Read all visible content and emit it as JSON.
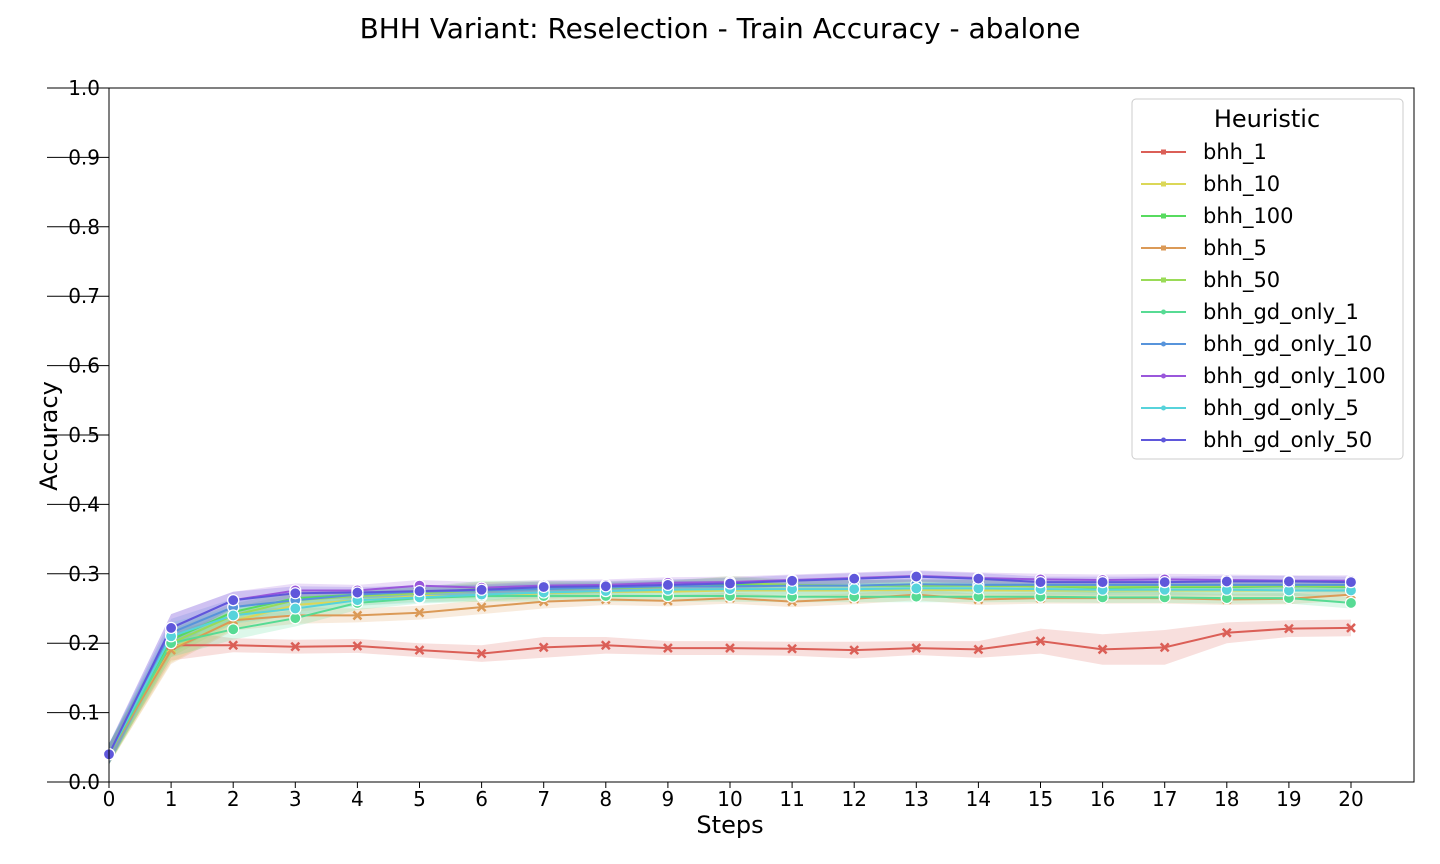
{
  "chart_data": {
    "type": "line",
    "title": "BHH Variant: Reselection - Train Accuracy - abalone",
    "xlabel": "Steps",
    "ylabel": "Accuracy",
    "xlim": [
      0,
      20
    ],
    "ylim": [
      0.0,
      1.0
    ],
    "x": [
      0,
      1,
      2,
      3,
      4,
      5,
      6,
      7,
      8,
      9,
      10,
      11,
      12,
      13,
      14,
      15,
      16,
      17,
      18,
      19,
      20
    ],
    "x_ticks": [
      "0",
      "1",
      "2",
      "3",
      "4",
      "5",
      "6",
      "7",
      "8",
      "9",
      "10",
      "11",
      "12",
      "13",
      "14",
      "15",
      "16",
      "17",
      "18",
      "19",
      "20"
    ],
    "y_ticks": [
      "0.0",
      "0.1",
      "0.2",
      "0.3",
      "0.4",
      "0.5",
      "0.6",
      "0.7",
      "0.8",
      "0.9",
      "1.0"
    ],
    "grid": false,
    "legend": {
      "title": "Heuristic",
      "position": "top-right"
    },
    "series": [
      {
        "name": "bhh_1",
        "color": "#db5f57",
        "marker": "x",
        "values": [
          0.04,
          0.197,
          0.197,
          0.195,
          0.196,
          0.19,
          0.185,
          0.194,
          0.197,
          0.193,
          0.193,
          0.192,
          0.19,
          0.193,
          0.191,
          0.203,
          0.191,
          0.194,
          0.215,
          0.221,
          0.222
        ],
        "band": [
          0.012,
          0.022,
          0.01,
          0.01,
          0.01,
          0.01,
          0.012,
          0.015,
          0.012,
          0.01,
          0.01,
          0.01,
          0.012,
          0.01,
          0.012,
          0.018,
          0.022,
          0.025,
          0.015,
          0.012,
          0.012
        ]
      },
      {
        "name": "bhh_10",
        "color": "#dbd757",
        "marker": "x",
        "values": [
          0.04,
          0.192,
          0.232,
          0.255,
          0.262,
          0.268,
          0.268,
          0.272,
          0.274,
          0.274,
          0.276,
          0.276,
          0.276,
          0.277,
          0.276,
          0.276,
          0.276,
          0.276,
          0.276,
          0.276,
          0.276
        ],
        "band": [
          0.015,
          0.02,
          0.012,
          0.01,
          0.008,
          0.008,
          0.008,
          0.008,
          0.008,
          0.008,
          0.008,
          0.008,
          0.008,
          0.008,
          0.008,
          0.008,
          0.008,
          0.008,
          0.008,
          0.008,
          0.008
        ]
      },
      {
        "name": "bhh_100",
        "color": "#57db5f",
        "marker": "x",
        "values": [
          0.04,
          0.205,
          0.245,
          0.265,
          0.27,
          0.273,
          0.278,
          0.28,
          0.281,
          0.283,
          0.285,
          0.283,
          0.283,
          0.283,
          0.283,
          0.282,
          0.28,
          0.281,
          0.281,
          0.282,
          0.281
        ],
        "band": [
          0.015,
          0.02,
          0.012,
          0.01,
          0.008,
          0.008,
          0.012,
          0.01,
          0.008,
          0.008,
          0.01,
          0.008,
          0.008,
          0.008,
          0.008,
          0.008,
          0.008,
          0.008,
          0.008,
          0.008,
          0.008
        ]
      },
      {
        "name": "bhh_5",
        "color": "#db9a57",
        "marker": "x",
        "values": [
          0.04,
          0.19,
          0.233,
          0.24,
          0.24,
          0.244,
          0.252,
          0.26,
          0.263,
          0.261,
          0.265,
          0.26,
          0.264,
          0.27,
          0.263,
          0.265,
          0.265,
          0.265,
          0.263,
          0.264,
          0.27
        ],
        "band": [
          0.015,
          0.02,
          0.015,
          0.012,
          0.01,
          0.01,
          0.01,
          0.01,
          0.008,
          0.008,
          0.008,
          0.008,
          0.008,
          0.008,
          0.008,
          0.008,
          0.008,
          0.008,
          0.008,
          0.008,
          0.008
        ]
      },
      {
        "name": "bhh_50",
        "color": "#9adb57",
        "marker": "x",
        "values": [
          0.04,
          0.2,
          0.24,
          0.262,
          0.268,
          0.272,
          0.276,
          0.278,
          0.279,
          0.281,
          0.287,
          0.284,
          0.283,
          0.284,
          0.283,
          0.282,
          0.281,
          0.282,
          0.282,
          0.283,
          0.282
        ],
        "band": [
          0.015,
          0.02,
          0.012,
          0.01,
          0.008,
          0.008,
          0.012,
          0.01,
          0.008,
          0.008,
          0.01,
          0.008,
          0.008,
          0.008,
          0.008,
          0.008,
          0.008,
          0.008,
          0.008,
          0.008,
          0.008
        ]
      },
      {
        "name": "bhh_gd_only_1",
        "color": "#57db94",
        "marker": "o",
        "values": [
          0.04,
          0.2,
          0.22,
          0.236,
          0.258,
          0.265,
          0.268,
          0.268,
          0.268,
          0.268,
          0.268,
          0.267,
          0.267,
          0.267,
          0.267,
          0.267,
          0.266,
          0.266,
          0.265,
          0.265,
          0.258
        ],
        "band": [
          0.015,
          0.02,
          0.015,
          0.012,
          0.01,
          0.008,
          0.008,
          0.008,
          0.008,
          0.008,
          0.008,
          0.008,
          0.008,
          0.008,
          0.008,
          0.008,
          0.008,
          0.008,
          0.008,
          0.008,
          0.008
        ]
      },
      {
        "name": "bhh_gd_only_10",
        "color": "#5794db",
        "marker": "o",
        "values": [
          0.04,
          0.215,
          0.252,
          0.262,
          0.27,
          0.274,
          0.276,
          0.278,
          0.28,
          0.282,
          0.282,
          0.283,
          0.283,
          0.285,
          0.284,
          0.284,
          0.284,
          0.284,
          0.284,
          0.284,
          0.284
        ],
        "band": [
          0.015,
          0.02,
          0.012,
          0.01,
          0.008,
          0.008,
          0.008,
          0.008,
          0.008,
          0.008,
          0.008,
          0.008,
          0.008,
          0.008,
          0.008,
          0.008,
          0.008,
          0.008,
          0.008,
          0.008,
          0.008
        ]
      },
      {
        "name": "bhh_gd_only_100",
        "color": "#9a57db",
        "marker": "o",
        "values": [
          0.04,
          0.222,
          0.262,
          0.276,
          0.276,
          0.283,
          0.28,
          0.283,
          0.284,
          0.287,
          0.288,
          0.291,
          0.294,
          0.297,
          0.294,
          0.292,
          0.291,
          0.292,
          0.291,
          0.29,
          0.29
        ],
        "band": [
          0.015,
          0.02,
          0.012,
          0.01,
          0.008,
          0.008,
          0.008,
          0.008,
          0.008,
          0.008,
          0.008,
          0.008,
          0.008,
          0.008,
          0.008,
          0.008,
          0.008,
          0.008,
          0.008,
          0.008,
          0.008
        ]
      },
      {
        "name": "bhh_gd_only_5",
        "color": "#57d3db",
        "marker": "o",
        "values": [
          0.04,
          0.21,
          0.24,
          0.25,
          0.262,
          0.266,
          0.27,
          0.273,
          0.275,
          0.277,
          0.278,
          0.278,
          0.278,
          0.279,
          0.279,
          0.278,
          0.277,
          0.277,
          0.277,
          0.276,
          0.276
        ],
        "band": [
          0.015,
          0.02,
          0.012,
          0.01,
          0.008,
          0.008,
          0.008,
          0.008,
          0.008,
          0.008,
          0.008,
          0.008,
          0.008,
          0.008,
          0.008,
          0.008,
          0.008,
          0.008,
          0.008,
          0.008,
          0.008
        ]
      },
      {
        "name": "bhh_gd_only_50",
        "color": "#5f57db",
        "marker": "o",
        "values": [
          0.04,
          0.222,
          0.262,
          0.272,
          0.273,
          0.275,
          0.277,
          0.281,
          0.282,
          0.284,
          0.286,
          0.29,
          0.293,
          0.296,
          0.293,
          0.288,
          0.288,
          0.288,
          0.289,
          0.289,
          0.288
        ],
        "band": [
          0.015,
          0.02,
          0.012,
          0.01,
          0.008,
          0.008,
          0.008,
          0.008,
          0.008,
          0.008,
          0.008,
          0.008,
          0.008,
          0.008,
          0.008,
          0.008,
          0.008,
          0.008,
          0.008,
          0.008,
          0.008
        ]
      }
    ]
  }
}
